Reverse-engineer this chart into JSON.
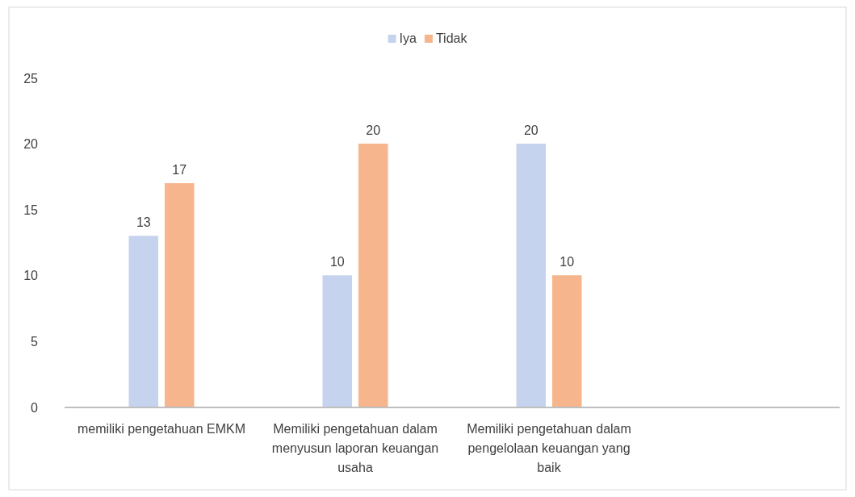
{
  "chart_data": {
    "type": "bar",
    "categories": [
      "memiliki pengetahuan EMKM",
      "Memiliki pengetahuan dalam menyusun laporan keuangan usaha",
      "Memiliki pengetahuan dalam pengelolaan keuangan yang baik",
      null
    ],
    "series": [
      {
        "name": "Iya",
        "color": "#c5d3ee",
        "values": [
          13,
          10,
          20,
          null
        ]
      },
      {
        "name": "Tidak",
        "color": "#f6b58c",
        "values": [
          17,
          20,
          10,
          null
        ]
      }
    ],
    "ylim": [
      0,
      25
    ],
    "yticks": [
      0,
      5,
      10,
      15,
      20,
      25
    ],
    "grid": false,
    "legend": "top",
    "data_labels": true
  }
}
